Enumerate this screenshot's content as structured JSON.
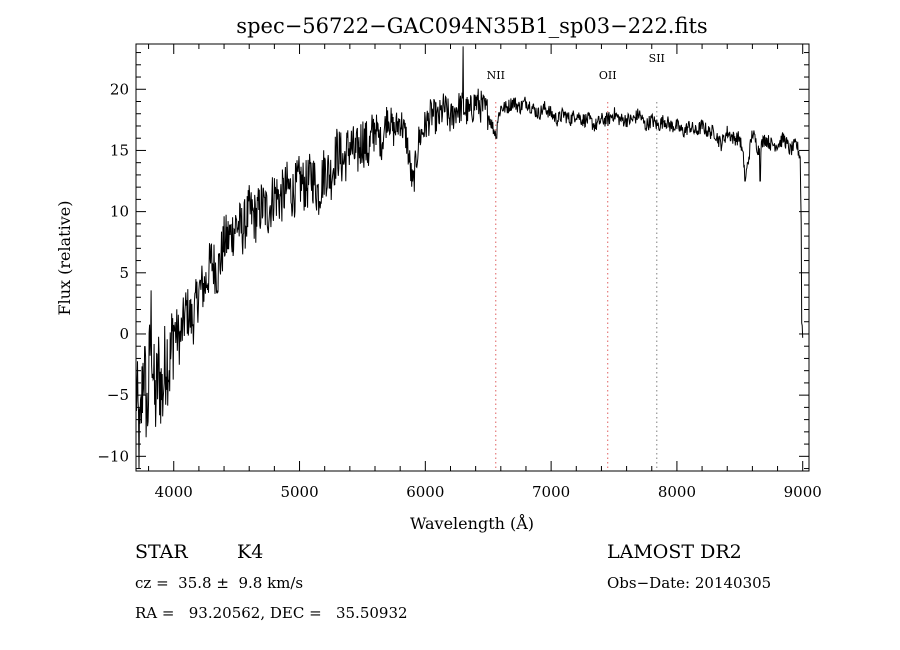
{
  "chart_data": {
    "type": "line",
    "title": "spec−56722−GAC094N35B1_sp03−222.fits",
    "xlabel": "Wavelength (Å)",
    "ylabel": "Flux (relative)",
    "xlim": [
      3700,
      9050
    ],
    "ylim": [
      -11.2,
      23.7
    ],
    "x_ticks": [
      4000,
      5000,
      6000,
      7000,
      8000,
      9000
    ],
    "y_ticks": [
      -10,
      -5,
      0,
      5,
      10,
      15,
      20
    ],
    "x_tick_labels": [
      "4000",
      "5000",
      "6000",
      "7000",
      "8000",
      "9000"
    ],
    "y_tick_labels": [
      "−10",
      "−5",
      "0",
      "5",
      "10",
      "15",
      "20"
    ],
    "grid": false,
    "line_markers": [
      {
        "label": "NII",
        "x": 6560,
        "color": "#e06060"
      },
      {
        "label": "OII",
        "x": 7450,
        "color": "#e06060"
      },
      {
        "label": "SII",
        "x": 7840,
        "color": "#808080"
      }
    ],
    "series": [
      {
        "x": [
          3700,
          3730,
          3760,
          3790,
          3820,
          3850,
          3880,
          3910,
          3940,
          3970,
          4000,
          4050,
          4100,
          4150,
          4200,
          4250,
          4300,
          4350,
          4400,
          4450,
          4500,
          4550,
          4600,
          4650,
          4700,
          4750,
          4800,
          4850,
          4900,
          4950,
          5000,
          5050,
          5100,
          5150,
          5200,
          5250,
          5300,
          5350,
          5400,
          5450,
          5500,
          5550,
          5600,
          5650,
          5700,
          5750,
          5800,
          5850,
          5900,
          5950,
          6000,
          6050,
          6100,
          6150,
          6200,
          6250,
          6300,
          6350,
          6400,
          6450,
          6500,
          6550,
          6600,
          6650,
          6700,
          6750,
          6800,
          6850,
          6900,
          6950,
          7000,
          7050,
          7100,
          7150,
          7200,
          7250,
          7300,
          7350,
          7400,
          7450,
          7500,
          7550,
          7600,
          7650,
          7700,
          7750,
          7800,
          7850,
          7900,
          7950,
          8000,
          8050,
          8100,
          8150,
          8200,
          8250,
          8300,
          8350,
          8400,
          8450,
          8500,
          8550,
          8600,
          8650,
          8700,
          8750,
          8800,
          8850,
          8900,
          8950,
          8980,
          9000
        ],
        "y": [
          -4.0,
          -9.5,
          -2.0,
          -7.0,
          1.0,
          -6.0,
          -3.0,
          -5.0,
          -1.5,
          -2.5,
          0.5,
          -0.5,
          2.0,
          1.0,
          3.5,
          4.0,
          6.0,
          5.0,
          7.5,
          8.0,
          9.0,
          8.5,
          10.0,
          9.5,
          10.5,
          10.0,
          11.5,
          11.0,
          12.0,
          11.5,
          12.5,
          12.0,
          13.0,
          11.5,
          13.5,
          13.0,
          15.0,
          14.0,
          15.5,
          14.5,
          16.0,
          15.0,
          17.0,
          15.5,
          18.0,
          16.5,
          17.5,
          16.0,
          12.0,
          16.0,
          17.0,
          18.0,
          17.5,
          18.5,
          17.5,
          18.5,
          18.5,
          18.0,
          19.0,
          18.5,
          18.0,
          16.5,
          18.5,
          18.5,
          19.0,
          18.5,
          19.0,
          18.5,
          18.0,
          18.5,
          18.0,
          17.5,
          18.0,
          17.5,
          18.0,
          17.5,
          17.5,
          17.0,
          17.5,
          17.5,
          18.0,
          17.5,
          17.5,
          17.5,
          18.0,
          17.0,
          17.5,
          17.0,
          17.5,
          17.0,
          17.0,
          16.5,
          17.0,
          16.5,
          17.0,
          16.5,
          16.5,
          15.5,
          16.5,
          16.0,
          16.0,
          13.0,
          16.5,
          15.0,
          16.0,
          15.5,
          15.5,
          16.0,
          15.0,
          15.5,
          14.5,
          0.5
        ]
      }
    ]
  },
  "info": {
    "object_class": "STAR",
    "subclass": "K4",
    "redshift": "cz =  35.8 ±  9.8 km/s",
    "coords": "RA =   93.20562, DEC =   35.50932",
    "survey": "LAMOST DR2",
    "obs_date": "Obs−Date: 20140305"
  }
}
